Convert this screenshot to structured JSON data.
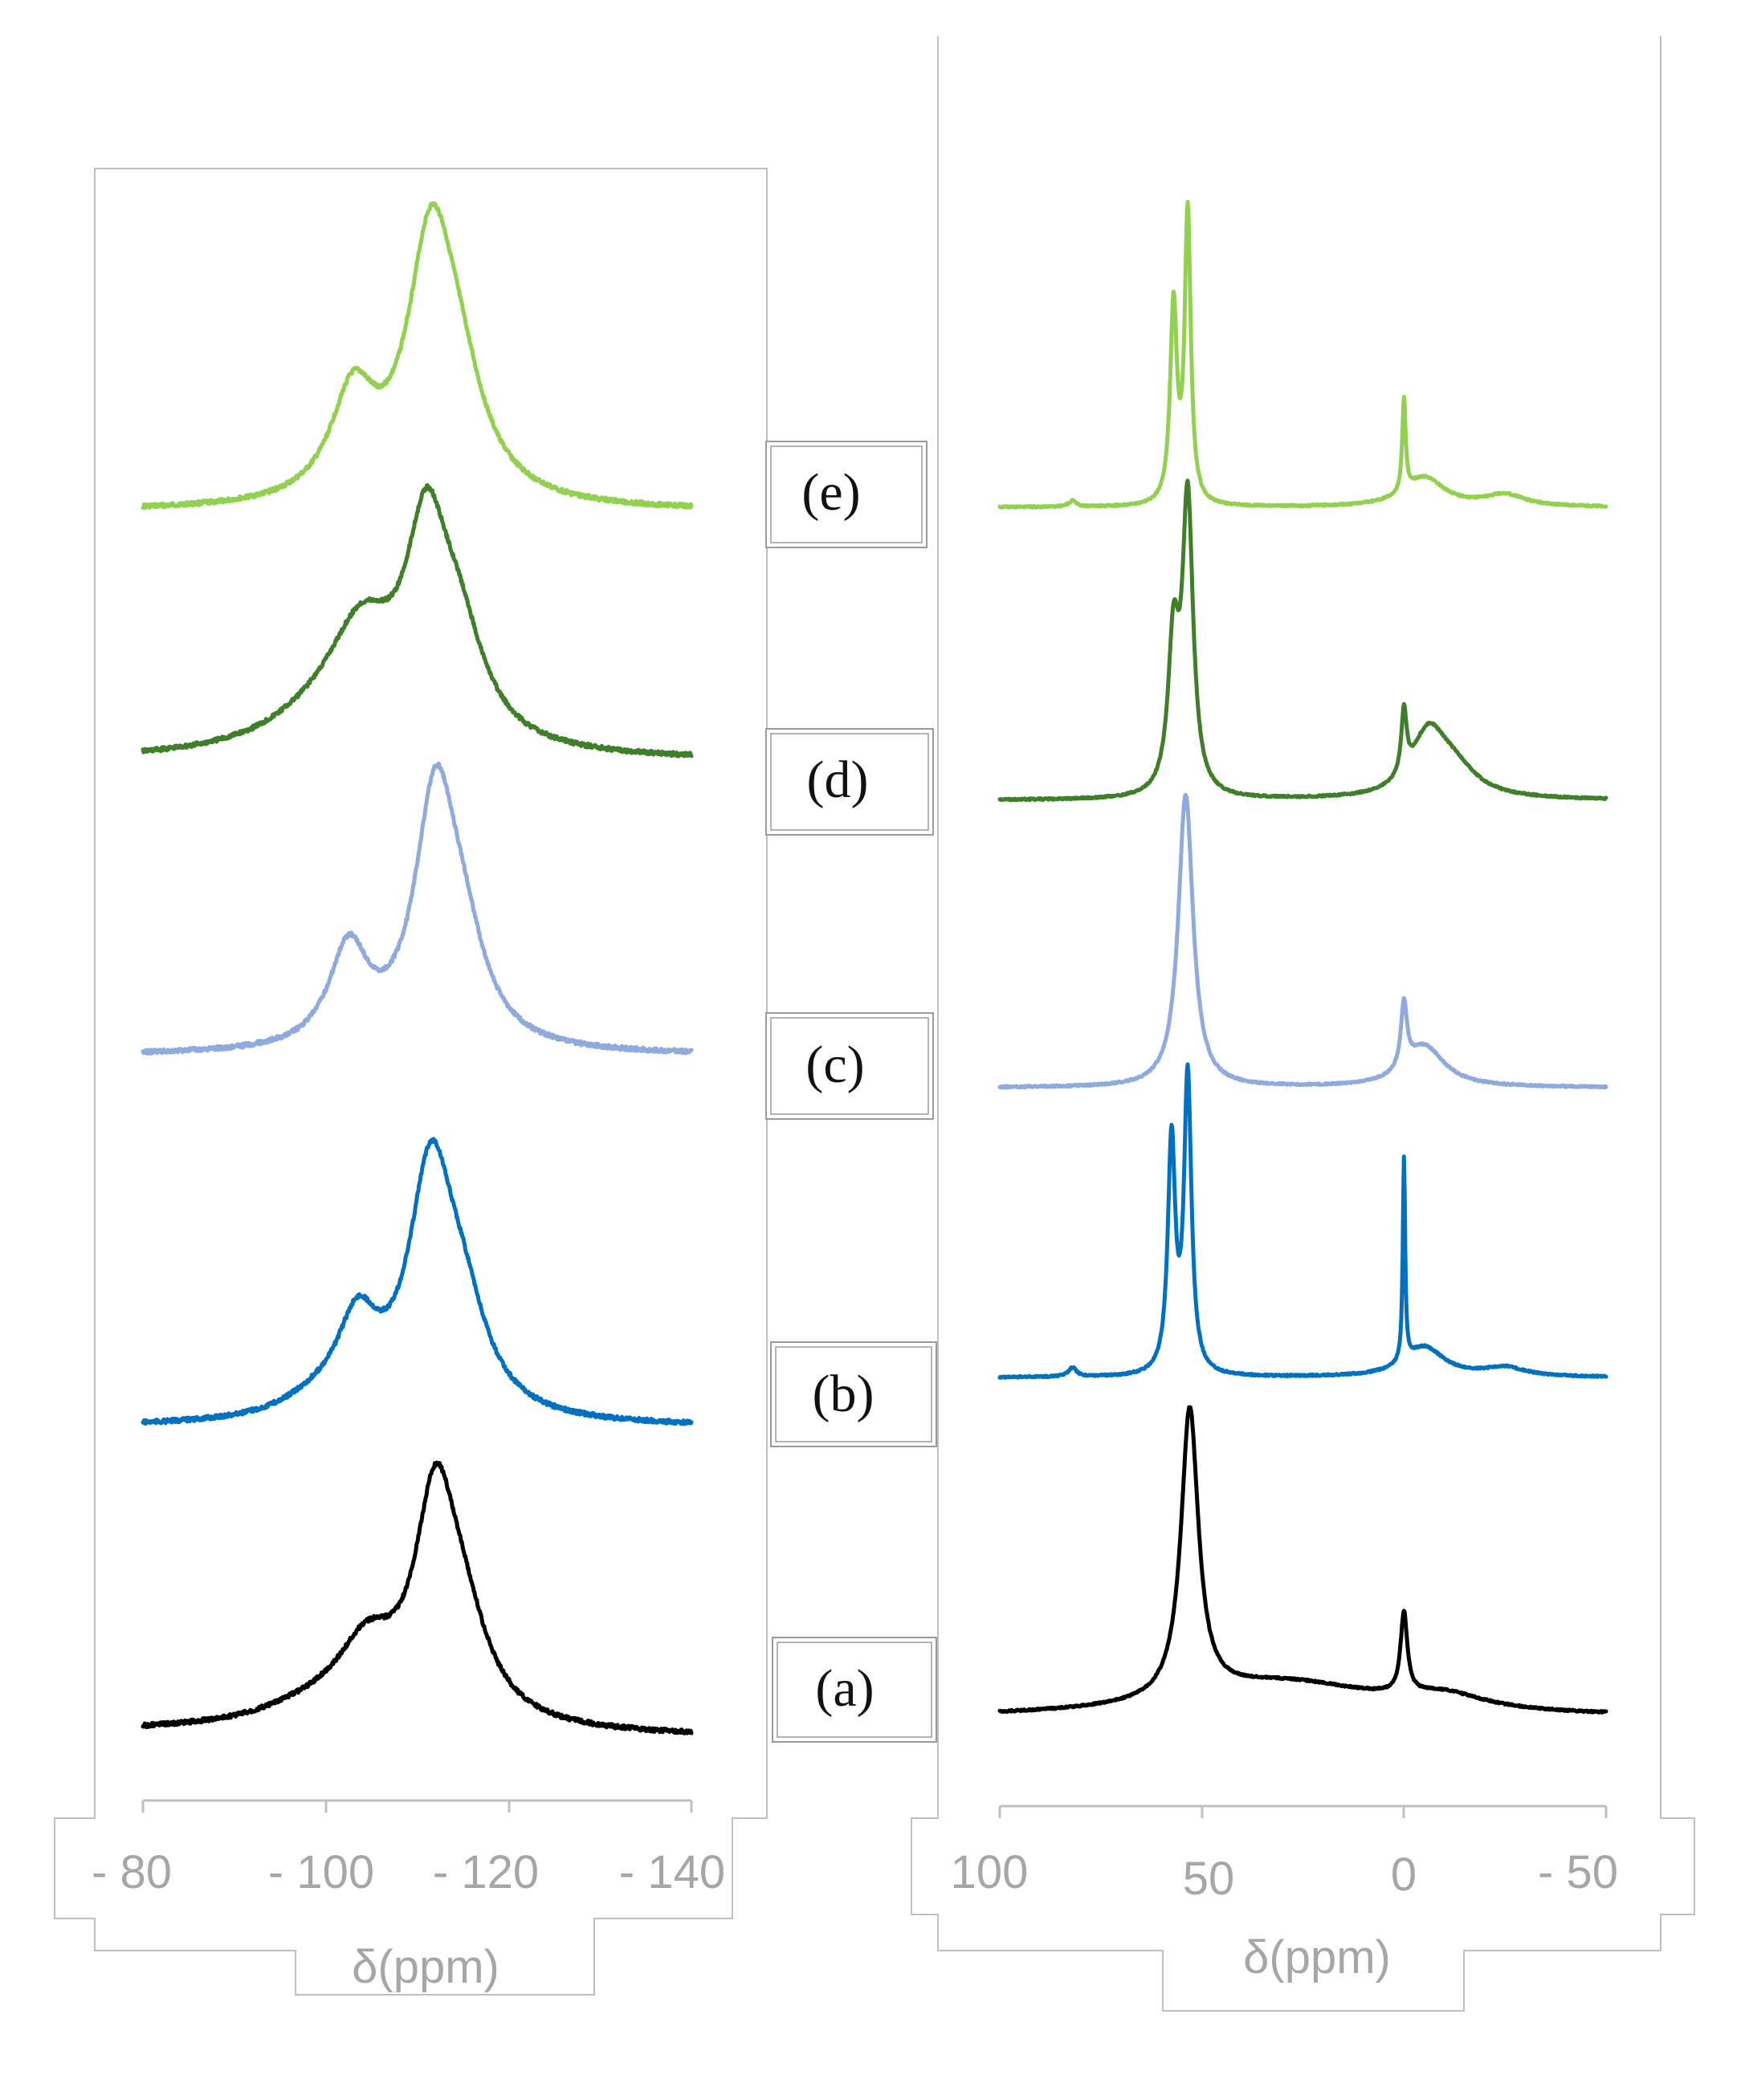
{
  "chart_data": [
    {
      "type": "line",
      "xlabel": "δ(ppm)",
      "xlim": [
        -80,
        -140
      ],
      "x_ticks": [
        -80,
        -100,
        -120,
        -140
      ],
      "x_tick_labels": [
        "- 80",
        "- 100",
        "- 120",
        "- 140"
      ],
      "series": [
        {
          "label": "(e)",
          "color": "#92d050",
          "peaks": [
            {
              "x": -111.5,
              "height": 1.0,
              "width": 3.2
            },
            {
              "x": -103.0,
              "height": 0.42,
              "width": 3.0
            },
            {
              "x": -114.5,
              "height": 0.35,
              "width": 3.5
            }
          ]
        },
        {
          "label": "(d)",
          "color": "#3f7f2a",
          "peaks": [
            {
              "x": -111.0,
              "height": 0.75,
              "width": 2.8
            },
            {
              "x": -104.0,
              "height": 0.4,
              "width": 4.5
            },
            {
              "x": -114.5,
              "height": 0.38,
              "width": 3.5
            },
            {
              "x": -100.0,
              "height": 0.12,
              "width": 8.0
            }
          ]
        },
        {
          "label": "(c)",
          "color": "#8faadc",
          "peaks": [
            {
              "x": -112.0,
              "height": 0.95,
              "width": 2.8
            },
            {
              "x": -102.5,
              "height": 0.38,
              "width": 2.6
            },
            {
              "x": -115.0,
              "height": 0.3,
              "width": 3.0
            }
          ]
        },
        {
          "label": "(b)",
          "color": "#0070c0",
          "peaks": [
            {
              "x": -111.5,
              "height": 0.95,
              "width": 3.0
            },
            {
              "x": -103.5,
              "height": 0.35,
              "width": 2.8
            },
            {
              "x": -115.0,
              "height": 0.33,
              "width": 3.3
            },
            {
              "x": -99.0,
              "height": 0.06,
              "width": 5.0
            }
          ]
        },
        {
          "label": "(a)",
          "color": "#000000",
          "peaks": [
            {
              "x": -112.0,
              "height": 0.85,
              "width": 2.8
            },
            {
              "x": -104.5,
              "height": 0.28,
              "width": 4.0
            },
            {
              "x": -115.0,
              "height": 0.33,
              "width": 3.5
            },
            {
              "x": -99.0,
              "height": 0.08,
              "width": 8.0
            }
          ]
        }
      ]
    },
    {
      "type": "line",
      "xlabel": "δ(ppm)",
      "xlim": [
        100,
        -50
      ],
      "x_ticks": [
        100,
        50,
        0,
        -50
      ],
      "x_tick_labels": [
        "100",
        "50",
        "0",
        "- 50"
      ],
      "series": [
        {
          "label": "(e)",
          "color": "#92d050",
          "peaks": [
            {
              "x": 53.5,
              "height": 1.0,
              "width": 0.9
            },
            {
              "x": 57.0,
              "height": 0.68,
              "width": 1.0
            },
            {
              "x": 0.0,
              "height": 0.32,
              "width": 0.5
            },
            {
              "x": -5.0,
              "height": 0.1,
              "width": 6.0
            },
            {
              "x": -25.0,
              "height": 0.04,
              "width": 6.0
            },
            {
              "x": 82.0,
              "height": 0.02,
              "width": 1.2
            }
          ]
        },
        {
          "label": "(d)",
          "color": "#3f7f2a",
          "peaks": [
            {
              "x": 53.5,
              "height": 1.0,
              "width": 1.6
            },
            {
              "x": 57.0,
              "height": 0.5,
              "width": 1.6
            },
            {
              "x": 0.0,
              "height": 0.22,
              "width": 0.8
            },
            {
              "x": -6.0,
              "height": 0.2,
              "width": 5.0
            },
            {
              "x": -12.0,
              "height": 0.1,
              "width": 7.0
            }
          ]
        },
        {
          "label": "(c)",
          "color": "#8faadc",
          "peaks": [
            {
              "x": 54.0,
              "height": 1.0,
              "width": 2.2
            },
            {
              "x": 0.0,
              "height": 0.22,
              "width": 0.9
            },
            {
              "x": -5.0,
              "height": 0.14,
              "width": 6.0
            }
          ]
        },
        {
          "label": "(b)",
          "color": "#0070c0",
          "peaks": [
            {
              "x": 53.5,
              "height": 1.0,
              "width": 1.1
            },
            {
              "x": 57.5,
              "height": 0.78,
              "width": 1.1
            },
            {
              "x": 0.0,
              "height": 0.68,
              "width": 0.35
            },
            {
              "x": -5.0,
              "height": 0.1,
              "width": 6.0
            },
            {
              "x": -25.0,
              "height": 0.03,
              "width": 6.0
            },
            {
              "x": 82.0,
              "height": 0.03,
              "width": 1.2
            }
          ]
        },
        {
          "label": "(a)",
          "color": "#000000",
          "peaks": [
            {
              "x": 53.0,
              "height": 1.0,
              "width": 2.6
            },
            {
              "x": 0.0,
              "height": 0.28,
              "width": 1.0
            },
            {
              "x": 30.0,
              "height": 0.12,
              "width": 30.0
            },
            {
              "x": -10.0,
              "height": 0.05,
              "width": 12.0
            }
          ]
        }
      ]
    }
  ]
}
